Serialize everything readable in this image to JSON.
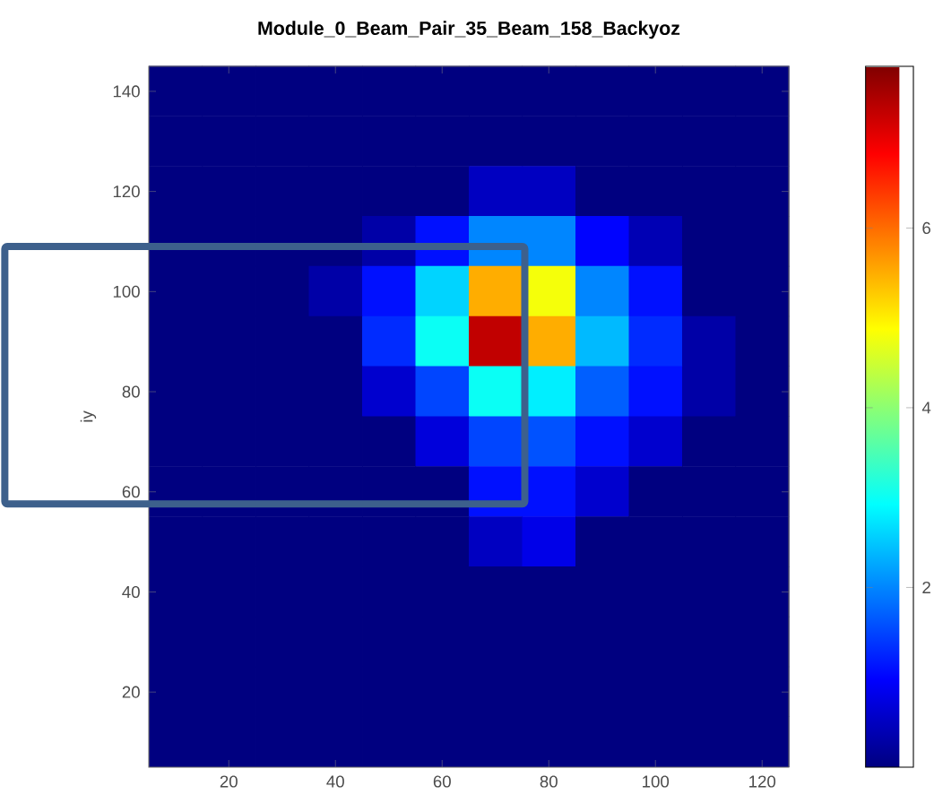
{
  "chart_data": {
    "type": "heatmap",
    "title": "Module_0_Beam_Pair_35_Beam_158_Backyoz",
    "ylabel": "iy",
    "categories": [
      null,
      "20",
      null,
      "40",
      null,
      "60",
      null,
      "80",
      null,
      "100",
      null,
      "120"
    ],
    "y_categories": [
      "140",
      null,
      "120",
      null,
      "100",
      null,
      "80",
      null,
      "60",
      null,
      "40",
      null,
      "20",
      null
    ],
    "clim": [
      0,
      7.8
    ],
    "cticks": [
      2,
      4,
      6
    ],
    "cells": [
      [
        0,
        0,
        0,
        0,
        0,
        0,
        0,
        0,
        0,
        0,
        0,
        0
      ],
      [
        0,
        0,
        0,
        0,
        0,
        0,
        0,
        0,
        0,
        0,
        0,
        0
      ],
      [
        0,
        0,
        0,
        0,
        0,
        0,
        0.5,
        0.5,
        0,
        0,
        0,
        0
      ],
      [
        0,
        0,
        0,
        0,
        0.3,
        1.1,
        2.0,
        2.0,
        1.0,
        0.4,
        0,
        0
      ],
      [
        0,
        0,
        0,
        0.3,
        1.1,
        2.6,
        5.5,
        4.8,
        2.0,
        1.1,
        0,
        0
      ],
      [
        0,
        0,
        0,
        0,
        1.3,
        3.0,
        7.3,
        5.5,
        2.4,
        1.3,
        0.3,
        0
      ],
      [
        0,
        0,
        0,
        0,
        0.6,
        1.5,
        3.0,
        2.8,
        1.7,
        1.1,
        0.3,
        0
      ],
      [
        0,
        0,
        0,
        0,
        0,
        0.7,
        1.5,
        1.6,
        1.1,
        0.6,
        0,
        0
      ],
      [
        0,
        0,
        0,
        0,
        0,
        0,
        1.1,
        1.1,
        0.6,
        0,
        0,
        0
      ],
      [
        0,
        0,
        0,
        0,
        0,
        0,
        0.5,
        0.8,
        0,
        0,
        0,
        0
      ],
      [
        0,
        0,
        0,
        0,
        0,
        0,
        0,
        0,
        0,
        0,
        0,
        0
      ],
      [
        0,
        0,
        0,
        0,
        0,
        0,
        0,
        0,
        0,
        0,
        0,
        0
      ],
      [
        0,
        0,
        0,
        0,
        0,
        0,
        0,
        0,
        0,
        0,
        0,
        0
      ],
      [
        0,
        0,
        0,
        0,
        0,
        0,
        0,
        0,
        0,
        0,
        0,
        0
      ]
    ]
  }
}
